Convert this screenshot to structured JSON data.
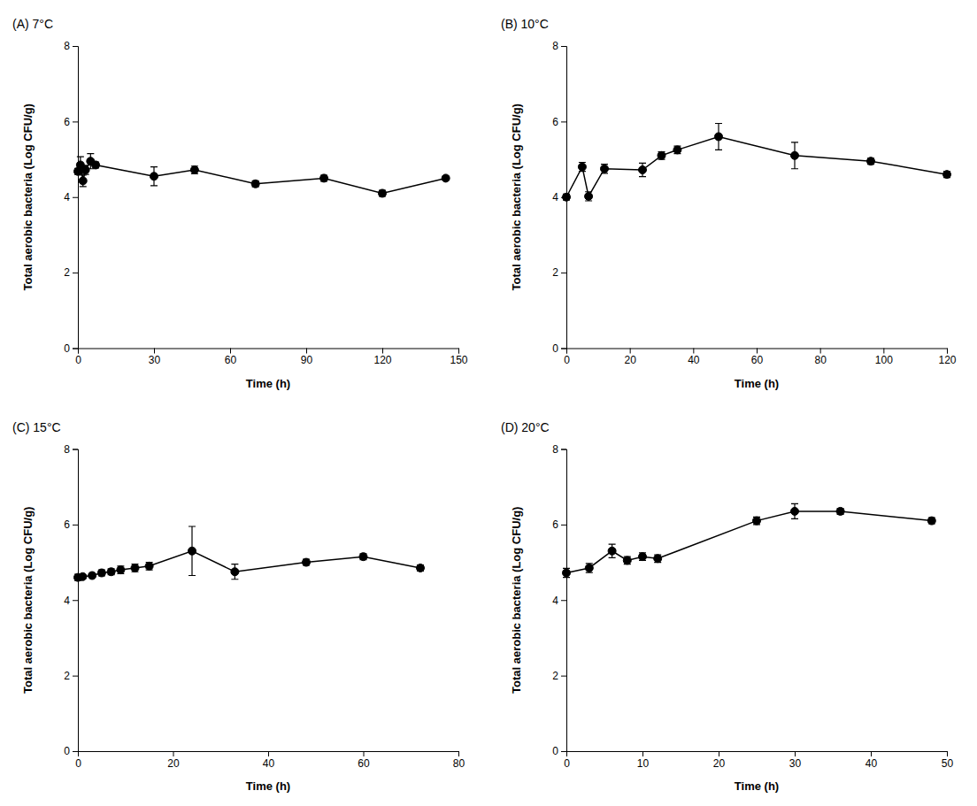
{
  "chart_data": [
    {
      "type": "line",
      "title": "(A) 7°C",
      "xlabel": "Time (h)",
      "ylabel": "Total aerobic bacteria (Log CFU/g)",
      "x": [
        0,
        1,
        2,
        3,
        5,
        7,
        30,
        46,
        70,
        97,
        120,
        145
      ],
      "values": [
        4.68,
        4.85,
        4.43,
        4.72,
        4.95,
        4.85,
        4.55,
        4.72,
        4.35,
        4.5,
        4.1,
        4.5
      ],
      "errors": [
        0.08,
        0.22,
        0.15,
        0.12,
        0.2,
        0.08,
        0.25,
        0.1,
        0.08,
        0.08,
        0.08,
        0.05
      ],
      "xlim": [
        0,
        150
      ],
      "xticks": [
        0,
        30,
        60,
        90,
        120,
        150
      ],
      "ylim": [
        0,
        8
      ],
      "yticks": [
        0,
        2,
        4,
        6,
        8
      ],
      "color": "black",
      "marker": "circle",
      "line_style": "solid"
    },
    {
      "type": "line",
      "title": "(B) 10°C",
      "xlabel": "Time (h)",
      "ylabel": "Total aerobic bacteria (Log CFU/g)",
      "x": [
        0,
        5,
        7,
        12,
        24,
        30,
        35,
        48,
        72,
        96,
        120
      ],
      "values": [
        4.0,
        4.8,
        4.02,
        4.75,
        4.72,
        5.1,
        5.25,
        5.6,
        5.1,
        4.95,
        4.6
      ],
      "errors": [
        0.08,
        0.12,
        0.12,
        0.12,
        0.18,
        0.1,
        0.1,
        0.35,
        0.35,
        0.08,
        0.08
      ],
      "xlim": [
        0,
        120
      ],
      "xticks": [
        0,
        20,
        40,
        60,
        80,
        100,
        120
      ],
      "ylim": [
        0,
        8
      ],
      "yticks": [
        0,
        2,
        4,
        6,
        8
      ],
      "color": "black",
      "marker": "circle",
      "line_style": "solid"
    },
    {
      "type": "line",
      "title": "(C) 15°C",
      "xlabel": "Time (h)",
      "ylabel": "Total aerobic bacteria (Log CFU/g)",
      "x": [
        0,
        1,
        3,
        5,
        7,
        9,
        12,
        15,
        24,
        33,
        48,
        60,
        72
      ],
      "values": [
        4.6,
        4.62,
        4.65,
        4.72,
        4.75,
        4.8,
        4.85,
        4.9,
        5.3,
        4.75,
        5.0,
        5.15,
        4.85
      ],
      "errors": [
        0.08,
        0.05,
        0.05,
        0.08,
        0.08,
        0.1,
        0.1,
        0.1,
        0.65,
        0.2,
        0.08,
        0.08,
        0.08
      ],
      "xlim": [
        0,
        80
      ],
      "xticks": [
        0,
        20,
        40,
        60,
        80
      ],
      "ylim": [
        0,
        8
      ],
      "yticks": [
        0,
        2,
        4,
        6,
        8
      ],
      "color": "black",
      "marker": "circle",
      "line_style": "solid"
    },
    {
      "type": "line",
      "title": "(D) 20°C",
      "xlabel": "Time (h)",
      "ylabel": "Total aerobic bacteria (Log CFU/g)",
      "x": [
        0,
        3,
        6,
        8,
        10,
        12,
        25,
        30,
        36,
        48
      ],
      "values": [
        4.72,
        4.85,
        5.3,
        5.05,
        5.15,
        5.1,
        6.1,
        6.35,
        6.35,
        6.1
      ],
      "errors": [
        0.12,
        0.12,
        0.18,
        0.1,
        0.1,
        0.1,
        0.1,
        0.2,
        0.08,
        0.08
      ],
      "xlim": [
        0,
        50
      ],
      "xticks": [
        0,
        10,
        20,
        30,
        40,
        50
      ],
      "ylim": [
        0,
        8
      ],
      "yticks": [
        0,
        2,
        4,
        6,
        8
      ],
      "color": "black",
      "marker": "circle",
      "line_style": "solid"
    }
  ]
}
